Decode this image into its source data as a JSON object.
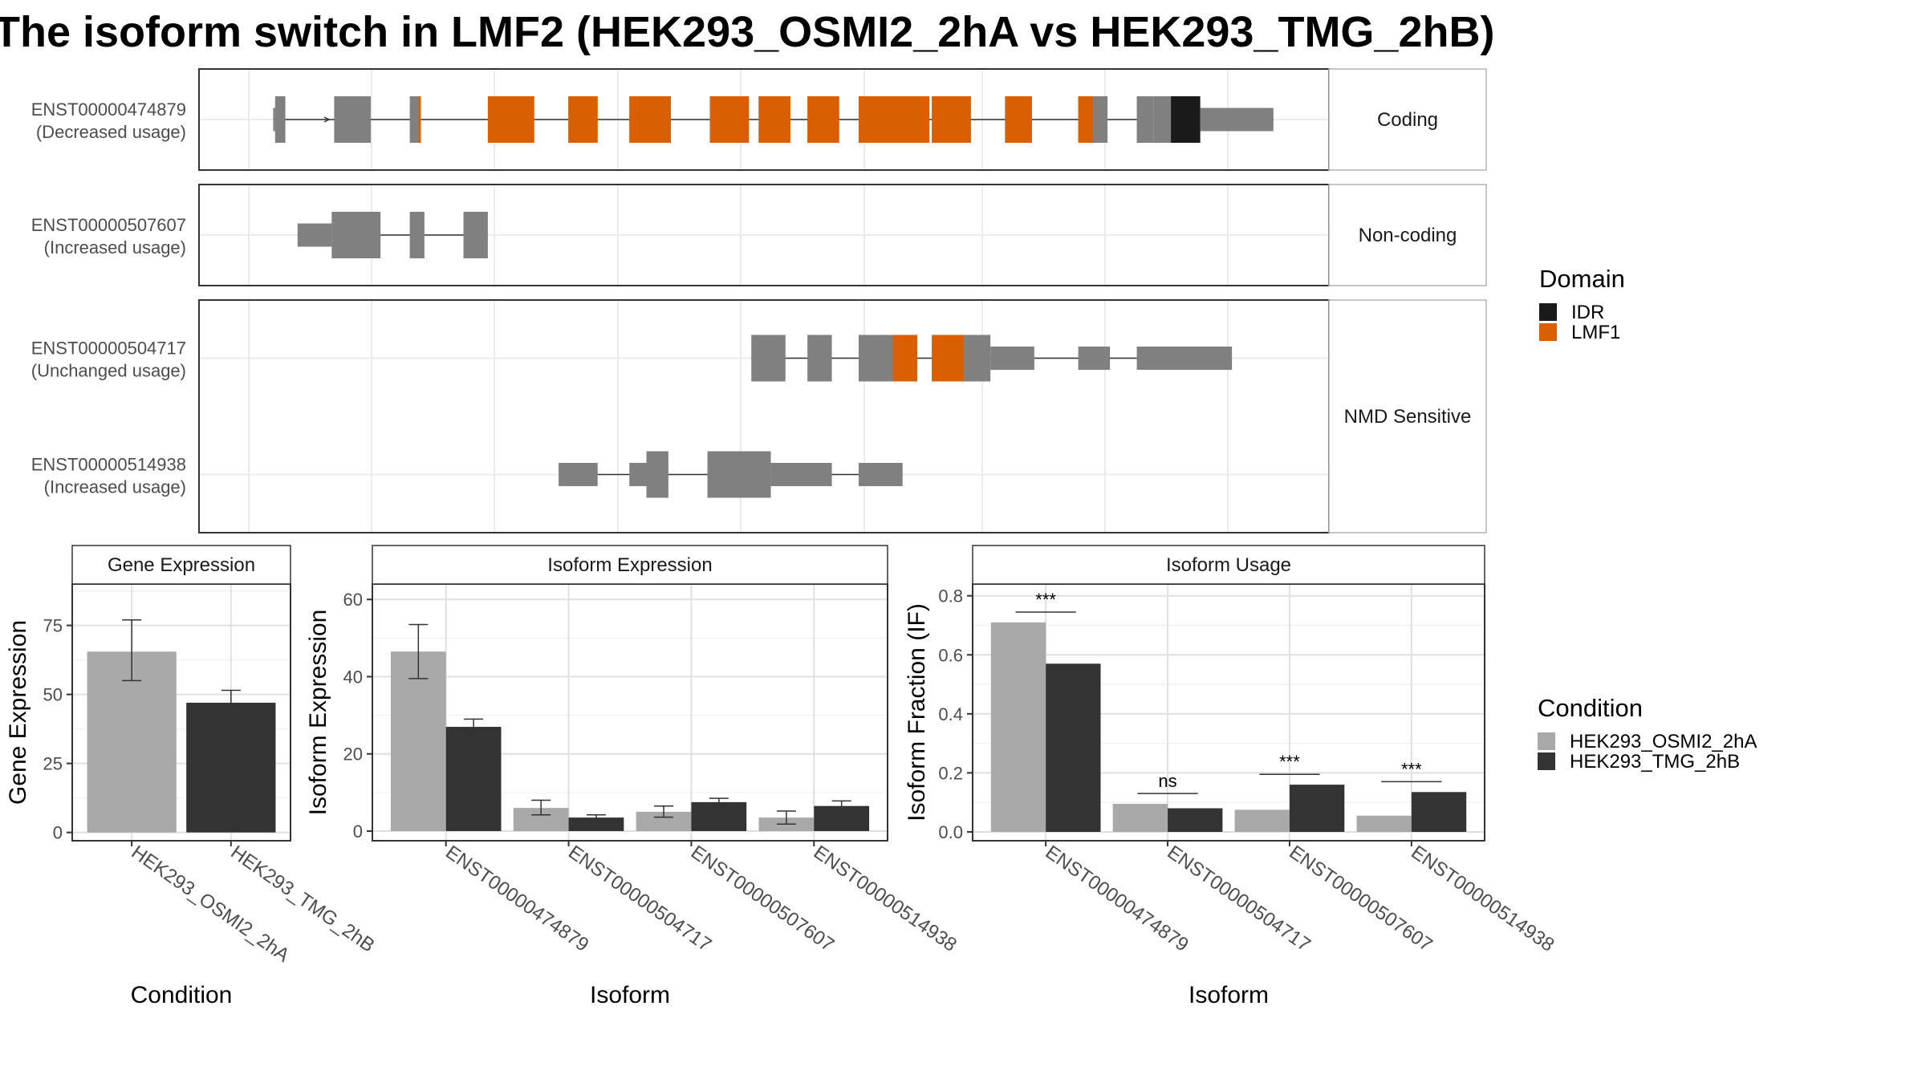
{
  "title": "The isoform switch in LMF2 (HEK293_OSMI2_2hA vs HEK293_TMG_2hB)",
  "transcript_panels": [
    {
      "strip": "Coding",
      "transcripts": [
        {
          "id": "ENST00000474879",
          "usage": "(Decreased usage)",
          "exons": [
            {
              "s": 1.0,
              "e": 1.08,
              "type": "utr"
            },
            {
              "s": 1.08,
              "e": 1.5,
              "type": "cds"
            },
            {
              "s": 3.5,
              "e": 5.0,
              "type": "cds"
            },
            {
              "s": 6.6,
              "e": 7.05,
              "type": "cds",
              "domain": [
                6.95,
                7.05
              ]
            },
            {
              "s": 9.8,
              "e": 11.7,
              "type": "cds",
              "domain": [
                9.8,
                11.7
              ]
            },
            {
              "s": 13.1,
              "e": 14.3,
              "type": "cds",
              "domain": [
                13.1,
                14.3
              ]
            },
            {
              "s": 15.6,
              "e": 17.3,
              "type": "cds",
              "domain": [
                15.6,
                17.3
              ]
            },
            {
              "s": 18.9,
              "e": 20.5,
              "type": "cds",
              "domain": [
                18.9,
                20.5
              ]
            },
            {
              "s": 20.9,
              "e": 22.2,
              "type": "cds",
              "domain": [
                20.9,
                22.2
              ]
            },
            {
              "s": 22.9,
              "e": 24.2,
              "type": "cds",
              "domain": [
                22.9,
                24.2
              ]
            },
            {
              "s": 25.0,
              "e": 27.9,
              "type": "cds",
              "domain": [
                25.0,
                27.9
              ]
            },
            {
              "s": 28.0,
              "e": 29.6,
              "type": "cds",
              "domain": [
                28.0,
                29.6
              ]
            },
            {
              "s": 31.0,
              "e": 32.1,
              "type": "cds",
              "domain": [
                31.0,
                32.1
              ]
            },
            {
              "s": 34.0,
              "e": 35.2,
              "type": "cds",
              "domain": [
                34.0,
                34.6
              ]
            },
            {
              "s": 36.4,
              "e": 37.1,
              "type": "cds"
            },
            {
              "s": 37.1,
              "e": 39.0,
              "type": "cds",
              "idr": [
                37.8,
                39.0
              ]
            },
            {
              "s": 39.0,
              "e": 42.0,
              "type": "utr"
            }
          ]
        }
      ]
    },
    {
      "strip": "Non-coding",
      "transcripts": [
        {
          "id": "ENST00000507607",
          "usage": "(Increased usage)",
          "exons": [
            {
              "s": 2.0,
              "e": 3.4,
              "type": "utr"
            },
            {
              "s": 3.4,
              "e": 5.4,
              "type": "cds"
            },
            {
              "s": 6.6,
              "e": 7.2,
              "type": "cds"
            },
            {
              "s": 8.8,
              "e": 9.8,
              "type": "cds"
            }
          ]
        }
      ]
    },
    {
      "strip": "NMD Sensitive",
      "transcripts": [
        {
          "id": "ENST00000504717",
          "usage": "(Unchanged usage)",
          "exons": [
            {
              "s": 20.6,
              "e": 22.0,
              "type": "cds"
            },
            {
              "s": 22.9,
              "e": 23.9,
              "type": "cds"
            },
            {
              "s": 25.0,
              "e": 26.2,
              "type": "cds"
            },
            {
              "s": 26.2,
              "e": 27.4,
              "type": "cds",
              "domain": [
                26.4,
                27.4
              ]
            },
            {
              "s": 28.0,
              "e": 30.4,
              "type": "cds",
              "domain": [
                28.0,
                29.3
              ]
            },
            {
              "s": 30.4,
              "e": 32.2,
              "type": "utr"
            },
            {
              "s": 34.0,
              "e": 35.3,
              "type": "utr"
            },
            {
              "s": 36.4,
              "e": 40.3,
              "type": "utr"
            }
          ]
        },
        {
          "id": "ENST00000514938",
          "usage": "(Increased usage)",
          "exons": [
            {
              "s": 12.7,
              "e": 14.3,
              "type": "utr"
            },
            {
              "s": 15.6,
              "e": 16.3,
              "type": "utr"
            },
            {
              "s": 16.3,
              "e": 17.2,
              "type": "cds"
            },
            {
              "s": 18.8,
              "e": 21.4,
              "type": "cds"
            },
            {
              "s": 21.4,
              "e": 23.9,
              "type": "utr"
            },
            {
              "s": 25.0,
              "e": 26.8,
              "type": "utr"
            }
          ]
        }
      ]
    }
  ],
  "domain_legend": {
    "title": "Domain",
    "items": [
      {
        "label": "IDR",
        "color": "#1a1a1a"
      },
      {
        "label": "LMF1",
        "color": "#d95f02"
      }
    ]
  },
  "condition_legend": {
    "title": "Condition",
    "items": [
      {
        "label": "HEK293_OSMI2_2hA",
        "color": "#a9a9a9"
      },
      {
        "label": "HEK293_TMG_2hB",
        "color": "#333333"
      }
    ]
  },
  "chart_data": [
    {
      "type": "bar",
      "strip": "Gene Expression",
      "ylabel": "Gene Expression",
      "xlabel": "Condition",
      "ylim": [
        -3,
        90
      ],
      "yticks": [
        0,
        25,
        50,
        75
      ],
      "categories": [
        "HEK293_OSMI2_2hA",
        "HEK293_TMG_2hB"
      ],
      "values": [
        65.5,
        47
      ],
      "err_low": [
        55,
        43
      ],
      "err_high": [
        77,
        51.5
      ]
    },
    {
      "type": "bar",
      "strip": "Isoform Expression",
      "ylabel": "Isoform Expression",
      "xlabel": "Isoform",
      "ylim": [
        -2.5,
        64
      ],
      "yticks": [
        0,
        20,
        40,
        60
      ],
      "categories": [
        "ENST00000474879",
        "ENST00000504717",
        "ENST00000507607",
        "ENST00000514938"
      ],
      "series": [
        {
          "name": "HEK293_OSMI2_2hA",
          "values": [
            46.5,
            6,
            5,
            3.5
          ],
          "err_low": [
            39.5,
            4.2,
            3.6,
            1.8
          ],
          "err_high": [
            53.5,
            8,
            6.5,
            5.2
          ]
        },
        {
          "name": "HEK293_TMG_2hB",
          "values": [
            27,
            3.5,
            7.5,
            6.5
          ],
          "err_low": [
            25,
            2.8,
            6.3,
            5
          ],
          "err_high": [
            29,
            4.2,
            8.5,
            7.8
          ]
        }
      ]
    },
    {
      "type": "bar",
      "strip": "Isoform Usage",
      "ylabel": "Isoform Fraction (IF)",
      "xlabel": "Isoform",
      "ylim": [
        -0.03,
        0.84
      ],
      "yticks": [
        0.0,
        0.2,
        0.4,
        0.6,
        0.8
      ],
      "categories": [
        "ENST00000474879",
        "ENST00000504717",
        "ENST00000507607",
        "ENST00000514938"
      ],
      "series": [
        {
          "name": "HEK293_OSMI2_2hA",
          "values": [
            0.71,
            0.095,
            0.075,
            0.055
          ]
        },
        {
          "name": "HEK293_TMG_2hB",
          "values": [
            0.57,
            0.08,
            0.16,
            0.135
          ]
        }
      ],
      "significance": [
        "***",
        "ns",
        "***",
        "***"
      ]
    }
  ]
}
